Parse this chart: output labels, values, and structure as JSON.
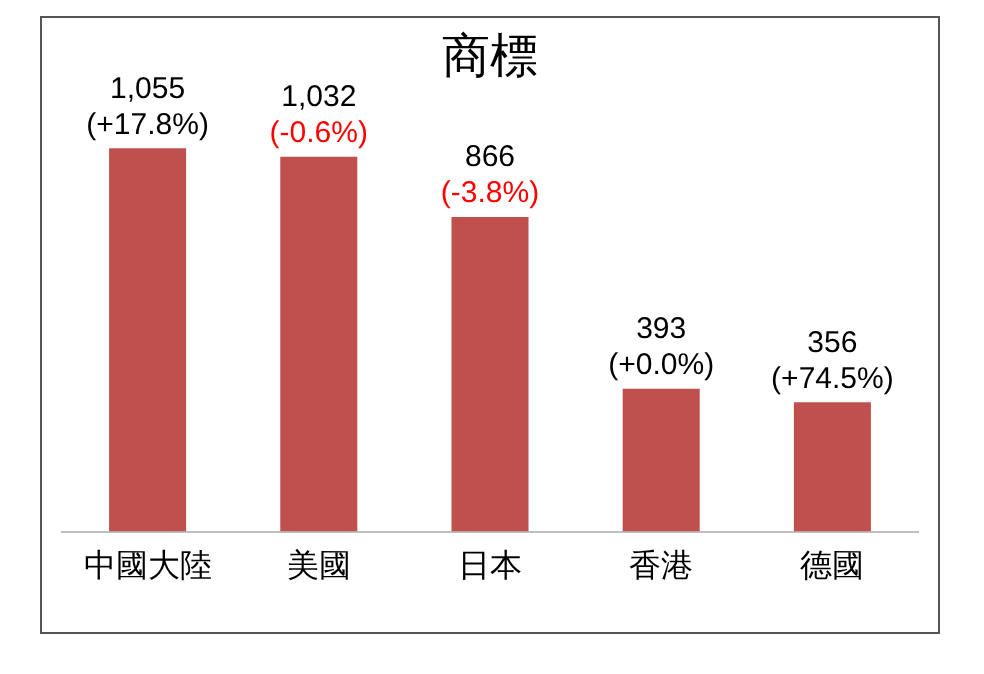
{
  "chart_data": {
    "type": "bar",
    "title": "商標",
    "categories": [
      "中國大陸",
      "美國",
      "日本",
      "香港",
      "德國"
    ],
    "values": [
      1055,
      1032,
      866,
      393,
      356
    ],
    "value_labels": [
      "1,055\n(+17.8%)",
      "1,032\n(-0.6%)",
      "866\n(-3.8%)",
      "393\n(+0.0%)",
      "356\n(+74.5%)"
    ],
    "color": "#c0504d",
    "legend": false,
    "grid": false
  }
}
